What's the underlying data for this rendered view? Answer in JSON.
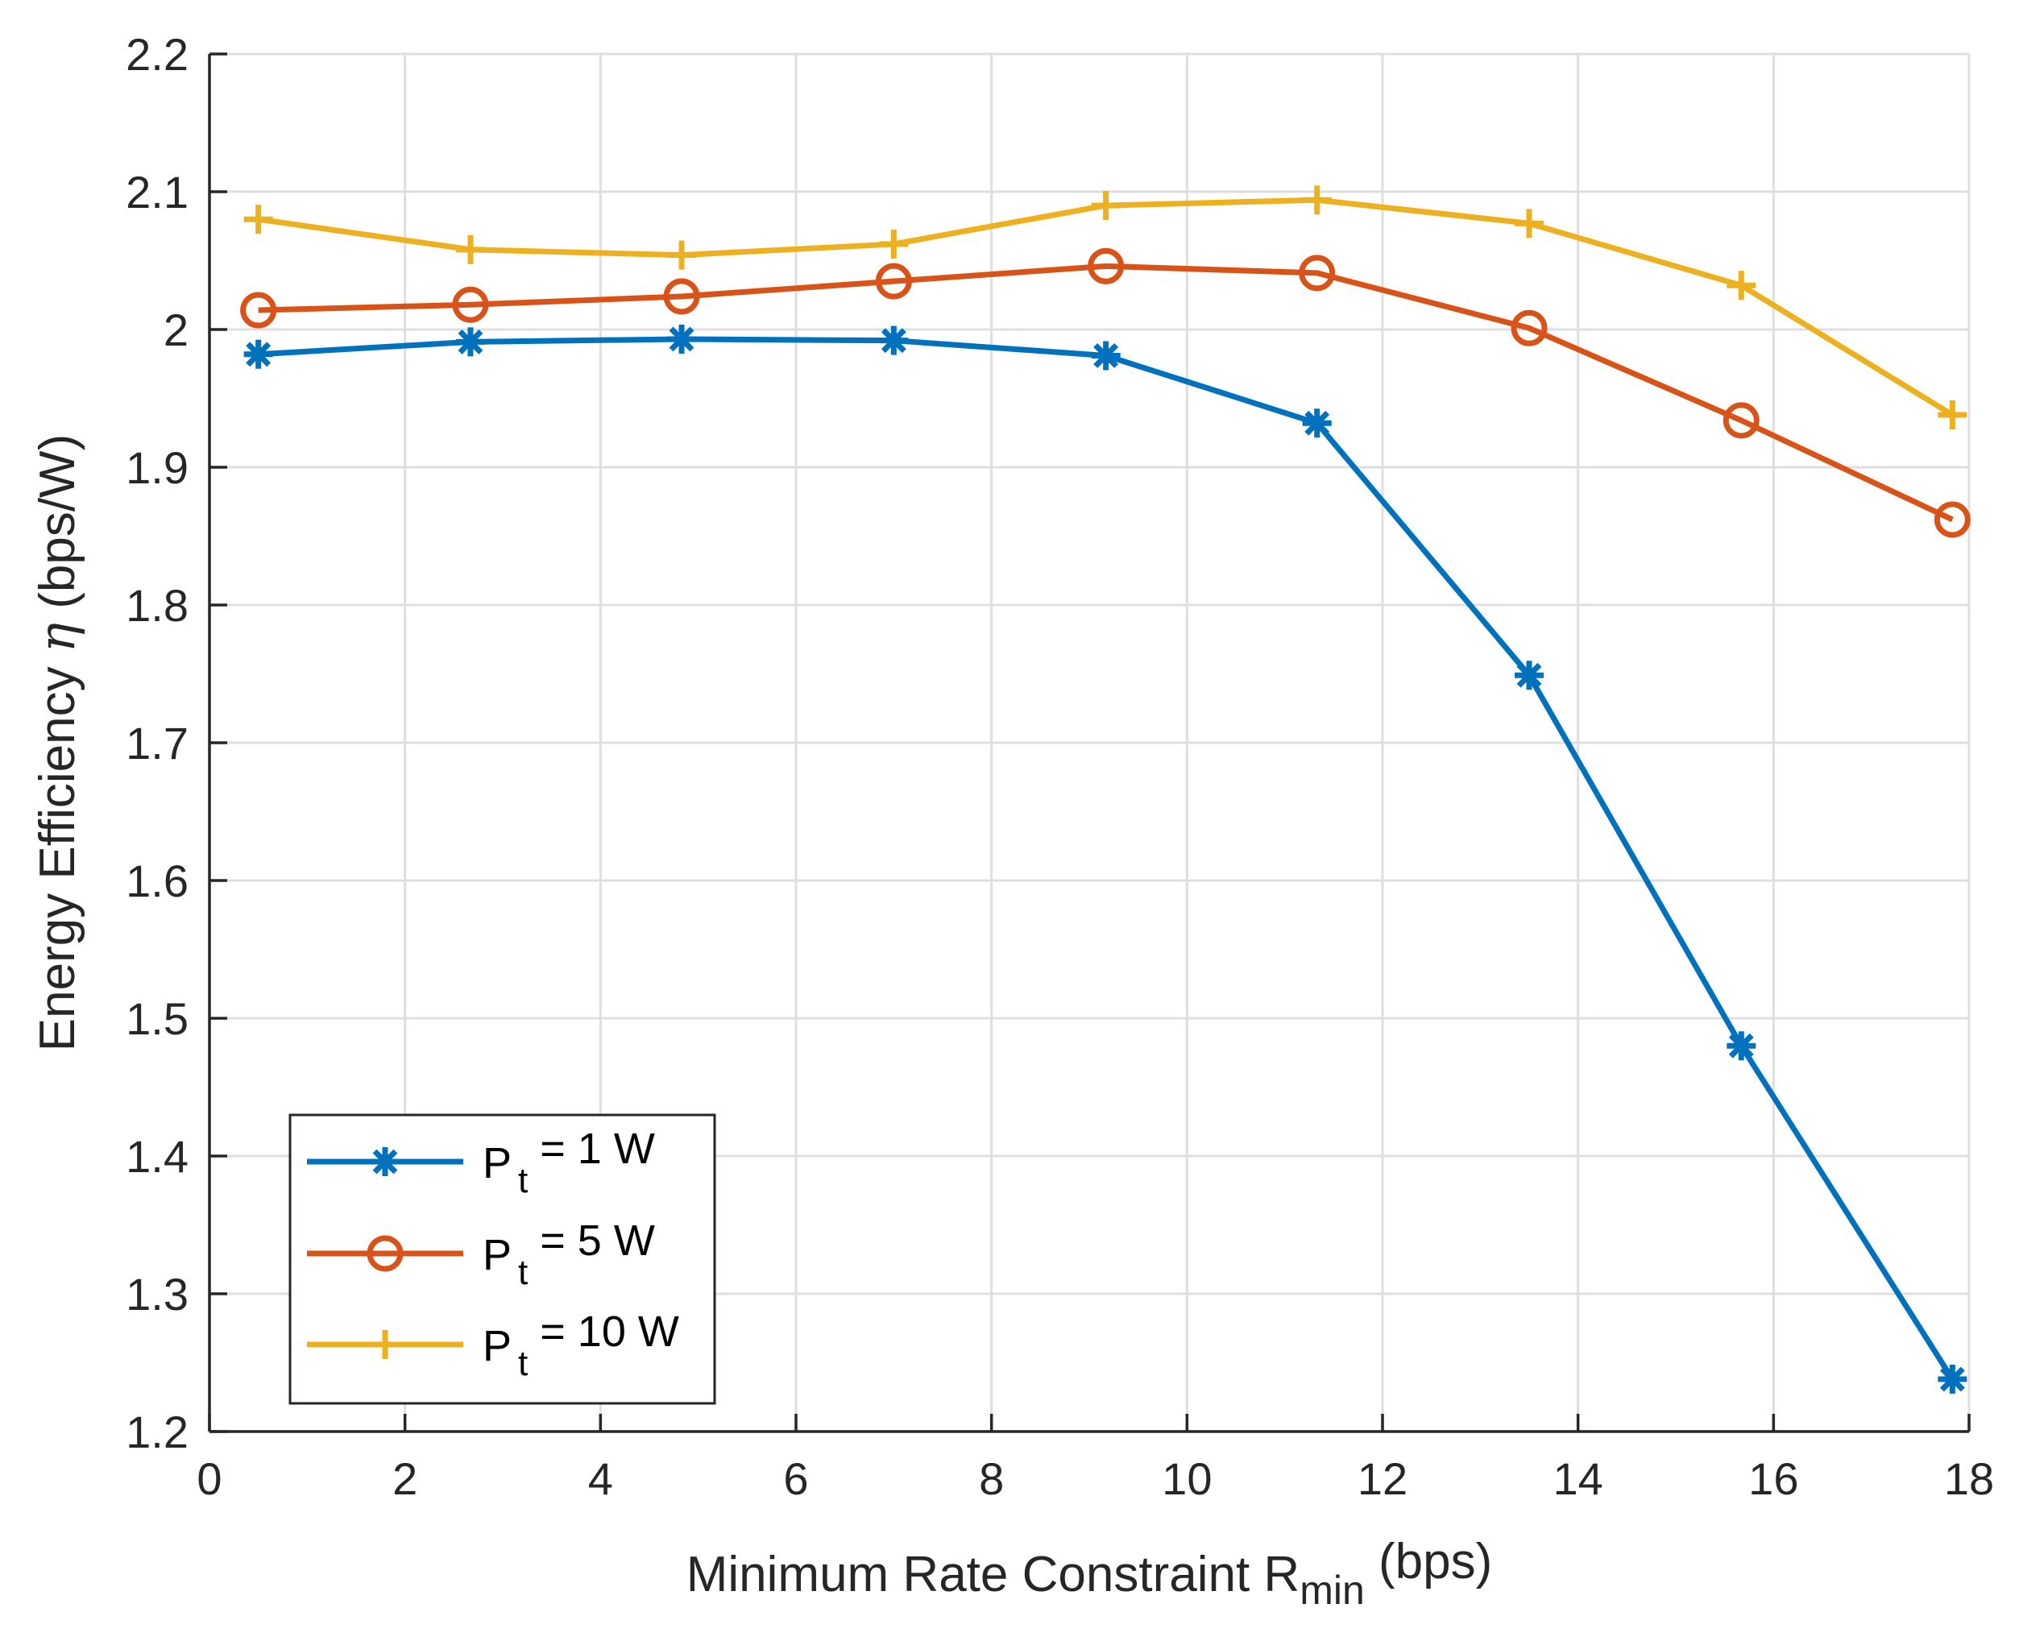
{
  "chart_data": {
    "type": "line",
    "xlabel": {
      "prefix": "Minimum Rate Constraint R",
      "sub": "min",
      "suffix": " (bps)"
    },
    "ylabel": {
      "prefix": "Energy Efficiency ",
      "symbol": "η",
      "suffix": " (bps/W)"
    },
    "xlim": [
      0,
      18
    ],
    "ylim": [
      1.2,
      2.2
    ],
    "xticks": [
      0,
      2,
      4,
      6,
      8,
      10,
      12,
      14,
      16,
      18
    ],
    "xtick_labels": [
      "0",
      "2",
      "4",
      "6",
      "8",
      "10",
      "12",
      "14",
      "16",
      "18"
    ],
    "yticks": [
      1.2,
      1.3,
      1.4,
      1.5,
      1.6,
      1.7,
      1.8,
      1.9,
      2.0,
      2.1,
      2.2
    ],
    "ytick_labels": [
      "1.2",
      "1.3",
      "1.4",
      "1.5",
      "1.6",
      "1.7",
      "1.8",
      "1.9",
      "2",
      "2.1",
      "2.2"
    ],
    "grid": true,
    "legend_position": "bottom-left",
    "x": [
      0.5,
      2.67,
      4.83,
      7.0,
      9.17,
      11.33,
      13.5,
      15.67,
      17.83
    ],
    "series": [
      {
        "name": "P_t = 1 W",
        "legend": {
          "base": "P",
          "sub": "t",
          "rest": " = 1 W"
        },
        "color": "#0072BD",
        "marker": "asterisk",
        "values": [
          1.982,
          1.991,
          1.993,
          1.992,
          1.981,
          1.932,
          1.749,
          1.48,
          1.238
        ]
      },
      {
        "name": "P_t = 5 W",
        "legend": {
          "base": "P",
          "sub": "t",
          "rest": " = 5 W"
        },
        "color": "#D95319",
        "marker": "circle",
        "values": [
          2.014,
          2.018,
          2.024,
          2.035,
          2.046,
          2.041,
          2.001,
          1.934,
          1.862
        ]
      },
      {
        "name": "P_t = 10 W",
        "legend": {
          "base": "P",
          "sub": "t",
          "rest": " = 10 W"
        },
        "color": "#EDB120",
        "marker": "plus",
        "values": [
          2.08,
          2.058,
          2.054,
          2.062,
          2.09,
          2.094,
          2.077,
          2.032,
          1.938
        ]
      }
    ]
  }
}
